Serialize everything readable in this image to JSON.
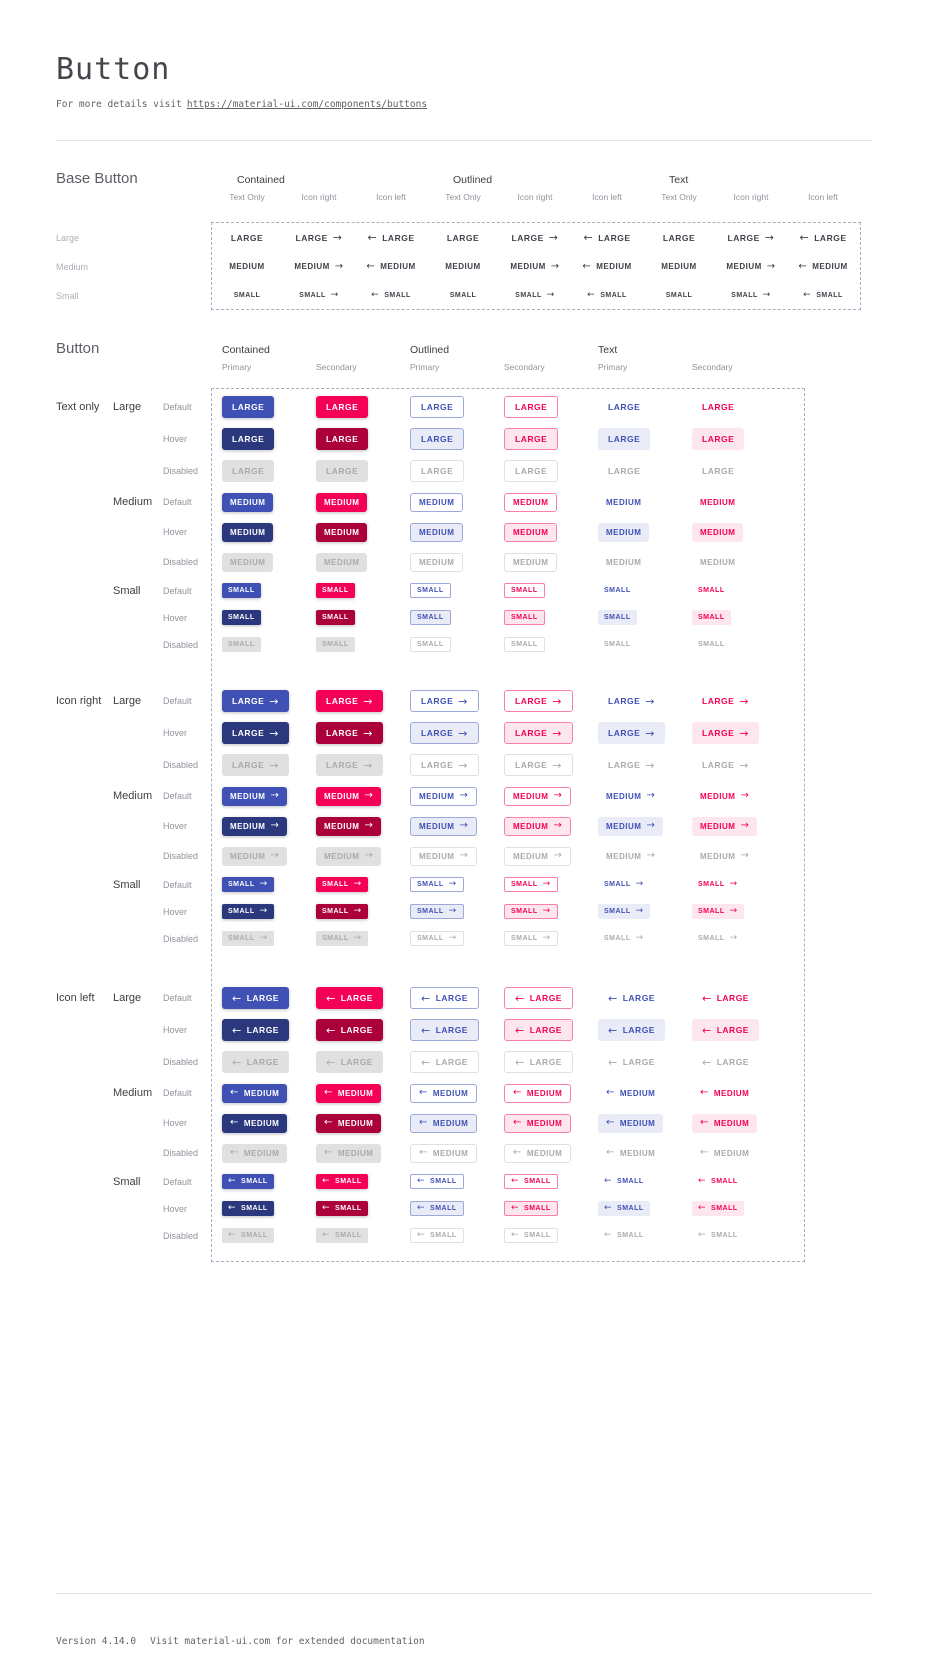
{
  "header": {
    "title": "Button",
    "subtitle_prefix": "For more details visit",
    "subtitle_link": "https://material-ui.com/components/buttons"
  },
  "base_section": {
    "heading": "Base Button",
    "group_headers": [
      "Contained",
      "Outlined",
      "Text"
    ],
    "sub_headers": [
      "Text Only",
      "Icon right",
      "Icon left"
    ],
    "row_labels": [
      "Large",
      "Medium",
      "Small"
    ],
    "button_texts": {
      "large": "LARGE",
      "medium": "MEDIUM",
      "small": "SMALL"
    }
  },
  "button_section": {
    "heading": "Button",
    "group_headers": [
      "Contained",
      "Outlined",
      "Text"
    ],
    "sub_headers": [
      "Primary",
      "Secondary"
    ],
    "icon_groups": [
      "Text only",
      "Icon right",
      "Icon left"
    ],
    "size_labels": [
      "Large",
      "Medium",
      "Small"
    ],
    "state_labels": [
      "Default",
      "Hover",
      "Disabled"
    ],
    "button_texts": {
      "large": "LARGE",
      "medium": "MEDIUM",
      "small": "SMALL"
    }
  },
  "icons": {
    "arrow_right": "→",
    "arrow_left": "←"
  },
  "colors": {
    "primary": "#3F51B5",
    "primary_dark": "#2C387E",
    "secondary": "#F50057",
    "secondary_dark": "#AB003C",
    "disabled_bg": "#E0E0E0",
    "disabled_text": "#AAAAAA",
    "outline_primary_border": "#9FA8DA",
    "outline_secondary_border": "#FA80AB",
    "hover_tint_primary": "#E9EBF7",
    "hover_tint_secondary": "#FDE6EE",
    "base_button_text": "#3E434A",
    "dashed_border": "#A8AEC2",
    "divider": "#E4E4E4",
    "heading": "#5C6066",
    "strong_label": "#3C4043",
    "muted_label": "#8F949C",
    "faint_label": "#ABAFB7",
    "title": "#43474C",
    "muted_mono": "#5F6368"
  },
  "footer": {
    "version": "Version 4.14.0",
    "note": "Visit material-ui.com for extended documentation"
  }
}
